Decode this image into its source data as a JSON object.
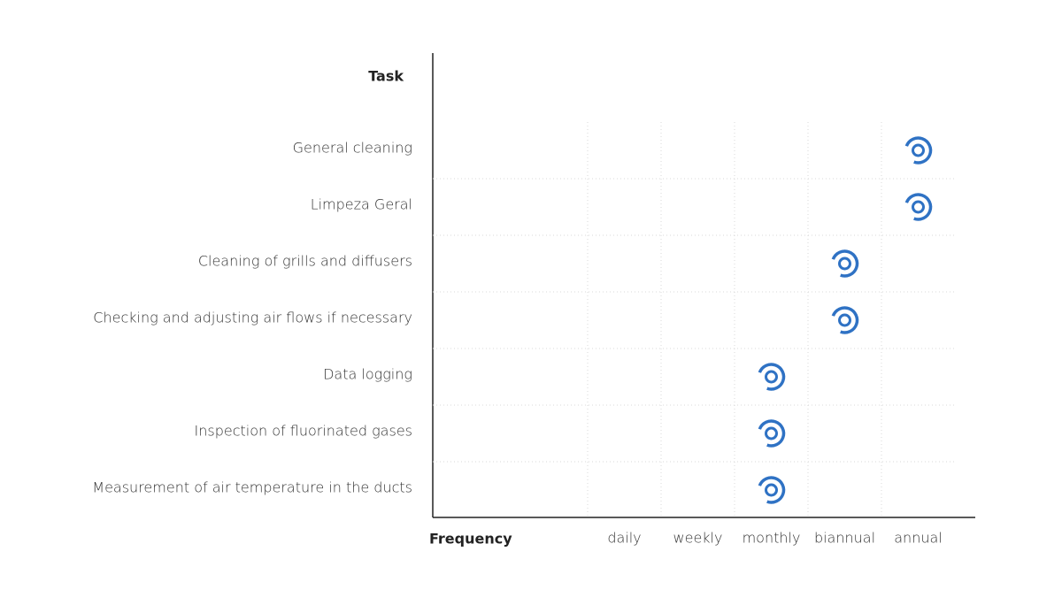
{
  "row_header": "Task",
  "column_header": "Frequency",
  "frequencies": [
    "daily",
    "weekly",
    "monthly",
    "biannual",
    "annual"
  ],
  "tasks": [
    {
      "label": "General cleaning",
      "frequency": "annual"
    },
    {
      "label": "Limpeza Geral",
      "frequency": "annual"
    },
    {
      "label": "Cleaning of grills and diffusers",
      "frequency": "biannual"
    },
    {
      "label": "Checking and adjusting air flows if necessary",
      "frequency": "biannual"
    },
    {
      "label": "Data logging",
      "frequency": "monthly"
    },
    {
      "label": "Inspection of fluorinated gases",
      "frequency": "monthly"
    },
    {
      "label": "Measurement of air temperature in the ducts",
      "frequency": "monthly"
    }
  ]
}
